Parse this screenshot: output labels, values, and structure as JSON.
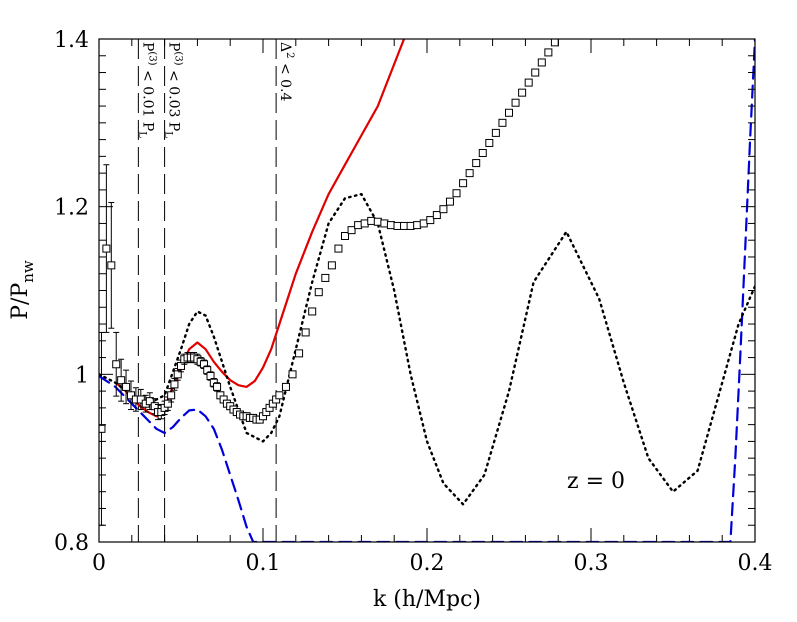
{
  "chart_data": {
    "type": "line",
    "xlabel": "k  (h/Mpc)",
    "ylabel": "P/P",
    "ylabel_sub": "nw",
    "xlim": [
      0,
      0.4
    ],
    "ylim": [
      0.8,
      1.4
    ],
    "xticks": [
      0,
      0.1,
      0.2,
      0.3,
      0.4
    ],
    "xtick_labels": [
      "0",
      "0.1",
      "0.2",
      "0.3",
      "0.4"
    ],
    "yticks": [
      0.8,
      1.0,
      1.2,
      1.4
    ],
    "ytick_labels": [
      "0.8",
      "1",
      "1.2",
      "1.4"
    ],
    "grid": false,
    "annotation": "z  =  0",
    "vertical_lines": [
      {
        "x": 0.024,
        "label": "P",
        "sup": "(3)",
        "rest": " < 0.01 P",
        "sub": "L"
      },
      {
        "x": 0.04,
        "label": "P",
        "sup": "(3)",
        "rest": " < 0.03 P",
        "sub": "L"
      },
      {
        "x": 0.108,
        "label": "Δ",
        "sup": "2",
        "rest": " < 0.4",
        "sub": ""
      }
    ],
    "series": [
      {
        "style": "solid",
        "color": "#e00000",
        "x": [
          0.01,
          0.015,
          0.02,
          0.025,
          0.03,
          0.035,
          0.04,
          0.045,
          0.05,
          0.055,
          0.06,
          0.065,
          0.07,
          0.075,
          0.08,
          0.085,
          0.09,
          0.095,
          0.1,
          0.105,
          0.11,
          0.115,
          0.12,
          0.13,
          0.14,
          0.15,
          0.16,
          0.17,
          0.18,
          0.186
        ],
        "y": [
          0.99,
          0.983,
          0.972,
          0.962,
          0.955,
          0.95,
          0.96,
          0.985,
          1.01,
          1.03,
          1.038,
          1.03,
          1.015,
          1.003,
          0.993,
          0.987,
          0.985,
          0.992,
          1.008,
          1.03,
          1.06,
          1.09,
          1.12,
          1.17,
          1.215,
          1.25,
          1.285,
          1.32,
          1.37,
          1.4
        ]
      },
      {
        "style": "dashed",
        "color": "#0000dd",
        "x": [
          0.0,
          0.01,
          0.02,
          0.03,
          0.035,
          0.04,
          0.045,
          0.05,
          0.055,
          0.06,
          0.065,
          0.07,
          0.075,
          0.08,
          0.085,
          0.09,
          0.094,
          0.385,
          0.388,
          0.391,
          0.394,
          0.397,
          0.4
        ],
        "y": [
          0.998,
          0.985,
          0.965,
          0.945,
          0.935,
          0.93,
          0.937,
          0.948,
          0.957,
          0.958,
          0.95,
          0.935,
          0.91,
          0.88,
          0.85,
          0.818,
          0.8,
          0.8,
          0.9,
          1.02,
          1.15,
          1.28,
          1.4
        ]
      },
      {
        "style": "dotted",
        "color": "#000000",
        "x": [
          0.0,
          0.01,
          0.02,
          0.03,
          0.04,
          0.05,
          0.055,
          0.06,
          0.065,
          0.07,
          0.08,
          0.09,
          0.1,
          0.105,
          0.11,
          0.12,
          0.13,
          0.14,
          0.15,
          0.16,
          0.17,
          0.18,
          0.19,
          0.2,
          0.21,
          0.222,
          0.235,
          0.25,
          0.265,
          0.285,
          0.305,
          0.32,
          0.335,
          0.35,
          0.365,
          0.38,
          0.39,
          0.4
        ],
        "y": [
          1.0,
          0.99,
          0.975,
          0.965,
          0.975,
          1.03,
          1.06,
          1.075,
          1.07,
          1.045,
          0.985,
          0.93,
          0.92,
          0.93,
          0.95,
          1.03,
          1.11,
          1.18,
          1.21,
          1.215,
          1.18,
          1.1,
          1.0,
          0.92,
          0.87,
          0.845,
          0.88,
          0.98,
          1.11,
          1.17,
          1.09,
          0.99,
          0.9,
          0.86,
          0.885,
          0.99,
          1.06,
          1.105
        ]
      }
    ],
    "markers": {
      "style": "open-square-with-errorbars",
      "color": "#000000",
      "x": [
        0.0015,
        0.0045,
        0.0075,
        0.0105,
        0.0135,
        0.0165,
        0.0195,
        0.0225,
        0.0255,
        0.0285,
        0.031,
        0.034,
        0.036,
        0.038,
        0.04,
        0.042,
        0.044,
        0.046,
        0.048,
        0.05,
        0.052,
        0.054,
        0.056,
        0.058,
        0.06,
        0.062,
        0.064,
        0.066,
        0.068,
        0.07,
        0.072,
        0.074,
        0.076,
        0.078,
        0.08,
        0.082,
        0.084,
        0.086,
        0.088,
        0.09,
        0.092,
        0.094,
        0.096,
        0.098,
        0.1,
        0.102,
        0.104,
        0.106,
        0.108,
        0.11,
        0.114,
        0.118,
        0.122,
        0.126,
        0.13,
        0.134,
        0.138,
        0.142,
        0.146,
        0.15,
        0.154,
        0.158,
        0.162,
        0.166,
        0.17,
        0.174,
        0.178,
        0.182,
        0.186,
        0.19,
        0.194,
        0.198,
        0.202,
        0.206,
        0.21,
        0.214,
        0.218,
        0.222,
        0.226,
        0.23,
        0.234,
        0.238,
        0.242,
        0.246,
        0.25,
        0.254,
        0.258,
        0.262,
        0.266,
        0.27,
        0.274,
        0.278
      ],
      "y": [
        0.935,
        1.15,
        1.13,
        1.012,
        0.993,
        0.985,
        0.975,
        0.97,
        0.97,
        0.965,
        0.968,
        0.962,
        0.955,
        0.955,
        0.96,
        0.965,
        0.975,
        0.988,
        1.0,
        1.01,
        1.018,
        1.02,
        1.02,
        1.02,
        1.018,
        1.015,
        1.012,
        1.005,
        0.998,
        0.99,
        0.985,
        0.975,
        0.97,
        0.965,
        0.962,
        0.958,
        0.955,
        0.952,
        0.95,
        0.95,
        0.948,
        0.948,
        0.946,
        0.946,
        0.95,
        0.955,
        0.96,
        0.965,
        0.97,
        0.975,
        0.985,
        1.0,
        1.025,
        1.05,
        1.075,
        1.098,
        1.115,
        1.13,
        1.15,
        1.165,
        1.172,
        1.178,
        1.18,
        1.183,
        1.182,
        1.18,
        1.178,
        1.177,
        1.177,
        1.177,
        1.178,
        1.18,
        1.184,
        1.19,
        1.197,
        1.206,
        1.216,
        1.228,
        1.24,
        1.252,
        1.264,
        1.276,
        1.288,
        1.3,
        1.312,
        1.324,
        1.336,
        1.348,
        1.36,
        1.372,
        1.384,
        1.396
      ],
      "err": [
        0.115,
        0.1,
        0.075,
        0.038,
        0.025,
        0.02,
        0.017,
        0.014,
        0.012,
        0.01,
        0.01,
        0.009,
        0.009,
        0.008,
        0.008,
        0.008,
        0.008,
        0.007,
        0.007,
        0.007,
        0.006,
        0.006,
        0.006,
        0.006,
        0.006,
        0.005,
        0.005,
        0.005,
        0.005,
        0.005,
        0.005,
        0.004,
        0.004,
        0.004,
        0.004,
        0.004,
        0.004,
        0.004,
        0.004,
        0.004,
        0.003,
        0.003,
        0.003,
        0.003,
        0.003,
        0.003,
        0.003,
        0.003,
        0.003,
        0.003,
        0.003,
        0.003,
        0.003,
        0.003,
        0.003,
        0.003,
        0.003,
        0.003,
        0.003,
        0.003,
        0.003,
        0.003,
        0.003,
        0.003,
        0.003,
        0.003,
        0.003,
        0.003,
        0.003,
        0.003,
        0.003,
        0.003,
        0.003,
        0.003,
        0.003,
        0.003,
        0.003,
        0.003,
        0.003,
        0.003,
        0.003,
        0.003,
        0.003,
        0.003,
        0.003,
        0.003,
        0.003,
        0.003,
        0.003,
        0.003,
        0.003,
        0.003
      ]
    }
  }
}
